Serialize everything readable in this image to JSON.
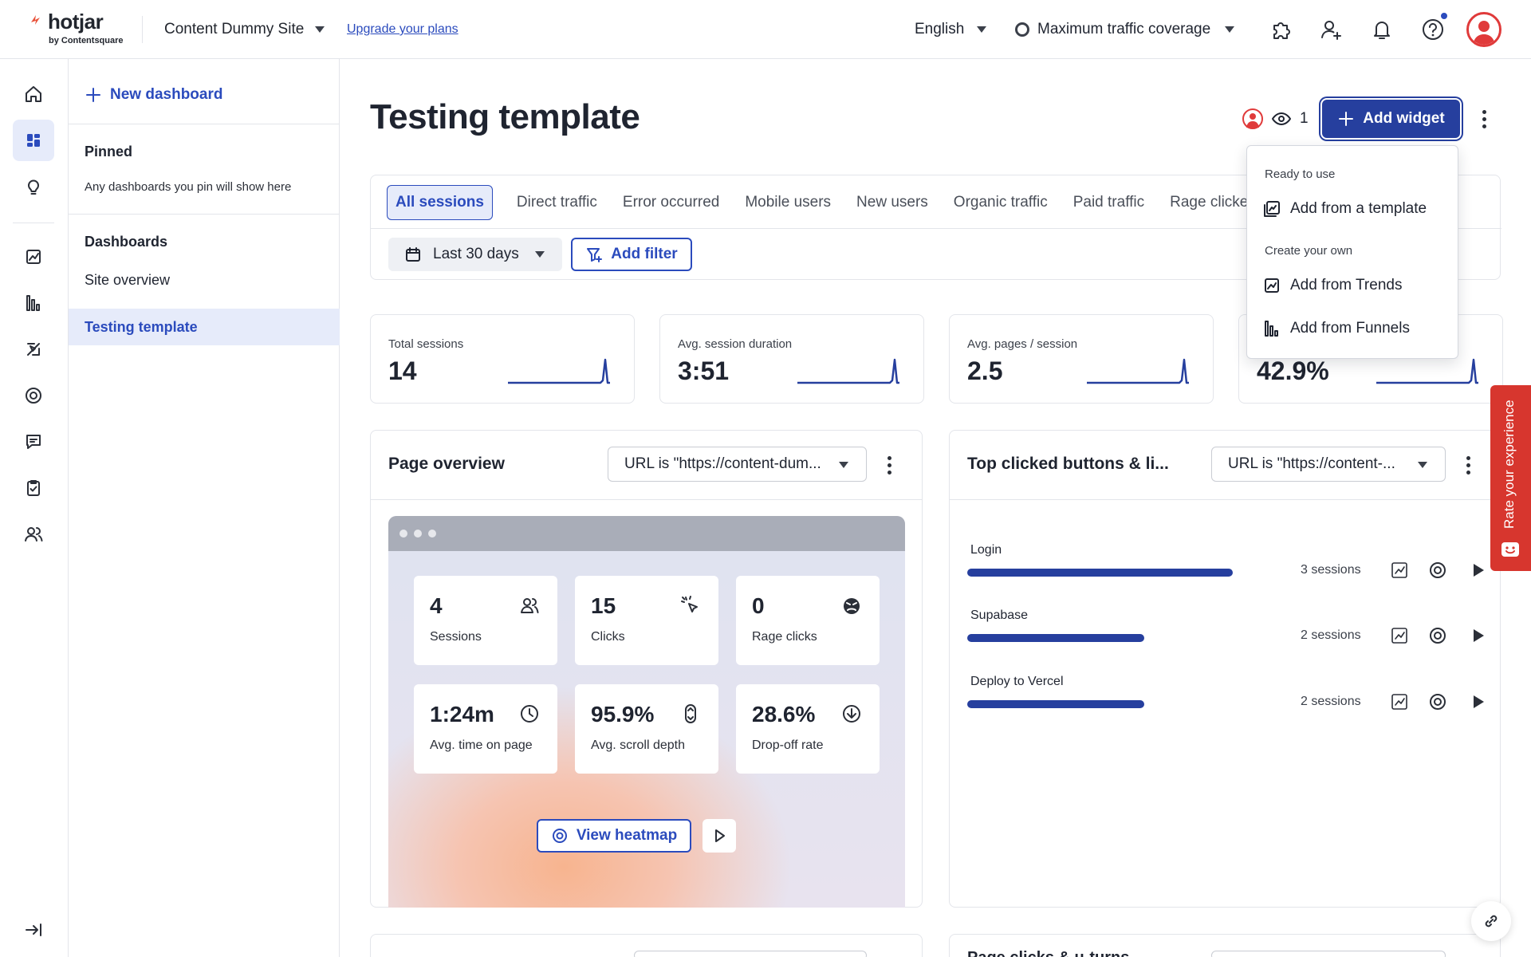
{
  "header": {
    "logo_text": "hotjar",
    "logo_subtext": "by Contentsquare",
    "site_name": "Content Dummy Site",
    "upgrade_link": "Upgrade your plans",
    "language": "English",
    "traffic_coverage": "Maximum traffic coverage",
    "icons": [
      "puzzle-icon",
      "add-user-icon",
      "bell-icon",
      "help-icon",
      "avatar"
    ]
  },
  "rail": {
    "items": [
      "home-icon",
      "dashboards-icon",
      "insights-icon",
      "trends-icon",
      "funnels-icon",
      "recordings-icon",
      "heatmaps-icon",
      "feedback-icon",
      "surveys-icon",
      "interviews-icon",
      "collapse-icon"
    ]
  },
  "dashboards_panel": {
    "new_dashboard": "New dashboard",
    "pinned_heading": "Pinned",
    "pinned_note": "Any dashboards you pin will show here",
    "dashboards_heading": "Dashboards",
    "items": [
      "Site overview",
      "Testing template"
    ]
  },
  "main": {
    "title": "Testing template",
    "viewer_count": "1",
    "add_widget": "Add widget",
    "tabs": [
      "All sessions",
      "Direct traffic",
      "Error occurred",
      "Mobile users",
      "New users",
      "Organic traffic",
      "Paid traffic",
      "Rage clicked"
    ],
    "date_range": "Last 30 days",
    "add_filter": "Add filter"
  },
  "metrics": [
    {
      "label": "Total sessions",
      "value": "14"
    },
    {
      "label": "Avg. session duration",
      "value": "3:51"
    },
    {
      "label": "Avg. pages / session",
      "value": "2.5"
    },
    {
      "label": "",
      "value": "42.9%"
    }
  ],
  "page_overview": {
    "title": "Page overview",
    "url_filter": "URL is \"https://content-dum...",
    "stats": [
      {
        "value": "4",
        "label": "Sessions",
        "icon": "users-icon"
      },
      {
        "value": "15",
        "label": "Clicks",
        "icon": "click-icon"
      },
      {
        "value": "0",
        "label": "Rage clicks",
        "icon": "angry-face-icon"
      },
      {
        "value": "1:24m",
        "label": "Avg. time on page",
        "icon": "clock-icon"
      },
      {
        "value": "95.9%",
        "label": "Avg. scroll depth",
        "icon": "scroll-icon"
      },
      {
        "value": "28.6%",
        "label": "Drop-off rate",
        "icon": "drop-off-icon"
      }
    ],
    "view_heatmap": "View heatmap"
  },
  "top_clicked": {
    "title": "Top clicked buttons & li...",
    "url_filter": "URL is \"https://content-...",
    "rows": [
      {
        "label": "Login",
        "sessions": "3 sessions",
        "share": 1.0
      },
      {
        "label": "Supabase",
        "sessions": "2 sessions",
        "share": 0.667
      },
      {
        "label": "Deploy to Vercel",
        "sessions": "2 sessions",
        "share": 0.667
      }
    ]
  },
  "bottom_cards": {
    "right_title": "Page clicks & u-turns"
  },
  "add_widget_menu": {
    "ready_heading": "Ready to use",
    "from_template": "Add from a template",
    "own_heading": "Create your own",
    "from_trends": "Add from Trends",
    "from_funnels": "Add from Funnels"
  },
  "feedback_tab": "Rate your experience",
  "colors": {
    "brand_blue": "#263f9e",
    "accent_blue": "#2b4bbd",
    "active_bg": "#e6ebfa",
    "feedback_red": "#d7362e"
  }
}
